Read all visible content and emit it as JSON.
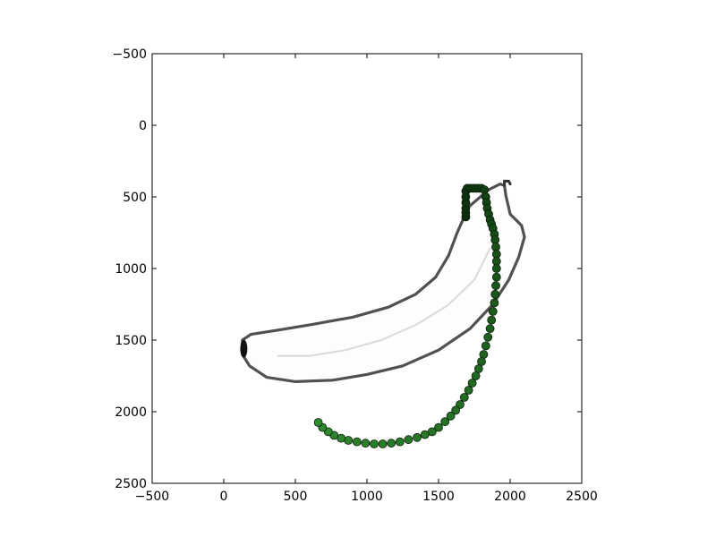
{
  "chart_data": {
    "type": "scatter",
    "title": "",
    "xlabel": "",
    "ylabel": "",
    "xlim": [
      -500,
      2500
    ],
    "ylim": [
      2500,
      -500
    ],
    "y_inverted": true,
    "grid": false,
    "x_ticks": [
      -500,
      0,
      500,
      1000,
      1500,
      2000,
      2500
    ],
    "y_ticks": [
      -500,
      0,
      500,
      1000,
      1500,
      2000,
      2500
    ],
    "x_tick_labels": [
      "−500",
      "0",
      "500",
      "1000",
      "1500",
      "2000",
      "2500"
    ],
    "y_tick_labels": [
      "−500",
      "0",
      "500",
      "1000",
      "1500",
      "2000",
      "2500"
    ],
    "background_image": {
      "subject": "banana line drawing",
      "stroke_color": "#333333",
      "outline": [
        [
          1710,
          570
        ],
        [
          1850,
          450
        ],
        [
          1930,
          410
        ],
        [
          1960,
          420
        ],
        [
          1970,
          490
        ],
        [
          2000,
          620
        ],
        [
          2080,
          700
        ],
        [
          2100,
          780
        ],
        [
          2060,
          920
        ],
        [
          1990,
          1080
        ],
        [
          1880,
          1250
        ],
        [
          1720,
          1420
        ],
        [
          1500,
          1570
        ],
        [
          1250,
          1680
        ],
        [
          1000,
          1740
        ],
        [
          760,
          1780
        ],
        [
          500,
          1790
        ],
        [
          300,
          1760
        ],
        [
          180,
          1680
        ],
        [
          130,
          1600
        ],
        [
          130,
          1500
        ],
        [
          190,
          1460
        ],
        [
          380,
          1430
        ],
        [
          620,
          1390
        ],
        [
          900,
          1340
        ],
        [
          1150,
          1270
        ],
        [
          1340,
          1180
        ],
        [
          1480,
          1060
        ],
        [
          1570,
          910
        ],
        [
          1630,
          750
        ],
        [
          1710,
          570
        ]
      ],
      "inner_line": [
        [
          380,
          1610
        ],
        [
          600,
          1610
        ],
        [
          850,
          1570
        ],
        [
          1100,
          1500
        ],
        [
          1350,
          1390
        ],
        [
          1560,
          1260
        ],
        [
          1750,
          1080
        ],
        [
          1860,
          860
        ]
      ],
      "stem_tip": [
        [
          1960,
          420
        ],
        [
          1960,
          390
        ],
        [
          1990,
          390
        ],
        [
          2000,
          410
        ]
      ]
    },
    "series": [
      {
        "color_start": "#0b2d0b",
        "color_end": "#2e8b2e",
        "x": [
          1690,
          1690,
          1690,
          1690,
          1690,
          1690,
          1700,
          1720,
          1740,
          1760,
          1780,
          1800,
          1820,
          1830,
          1835,
          1840,
          1850,
          1860,
          1870,
          1880,
          1890,
          1895,
          1900,
          1905,
          1905,
          1905,
          1905,
          1900,
          1895,
          1890,
          1880,
          1870,
          1860,
          1845,
          1830,
          1815,
          1800,
          1780,
          1760,
          1735,
          1710,
          1680,
          1650,
          1620,
          1585,
          1545,
          1500,
          1455,
          1405,
          1350,
          1290,
          1230,
          1170,
          1110,
          1050,
          990,
          930,
          870,
          820,
          770,
          730,
          690,
          660
        ],
        "y": [
          640,
          610,
          580,
          540,
          500,
          460,
          440,
          440,
          440,
          440,
          440,
          440,
          450,
          500,
          540,
          580,
          620,
          660,
          690,
          720,
          760,
          800,
          850,
          900,
          950,
          1000,
          1060,
          1120,
          1180,
          1240,
          1300,
          1360,
          1420,
          1480,
          1540,
          1600,
          1650,
          1700,
          1750,
          1800,
          1850,
          1900,
          1950,
          1990,
          2030,
          2070,
          2110,
          2140,
          2160,
          2180,
          2195,
          2210,
          2220,
          2225,
          2225,
          2220,
          2210,
          2200,
          2185,
          2165,
          2140,
          2110,
          2075
        ]
      }
    ]
  }
}
